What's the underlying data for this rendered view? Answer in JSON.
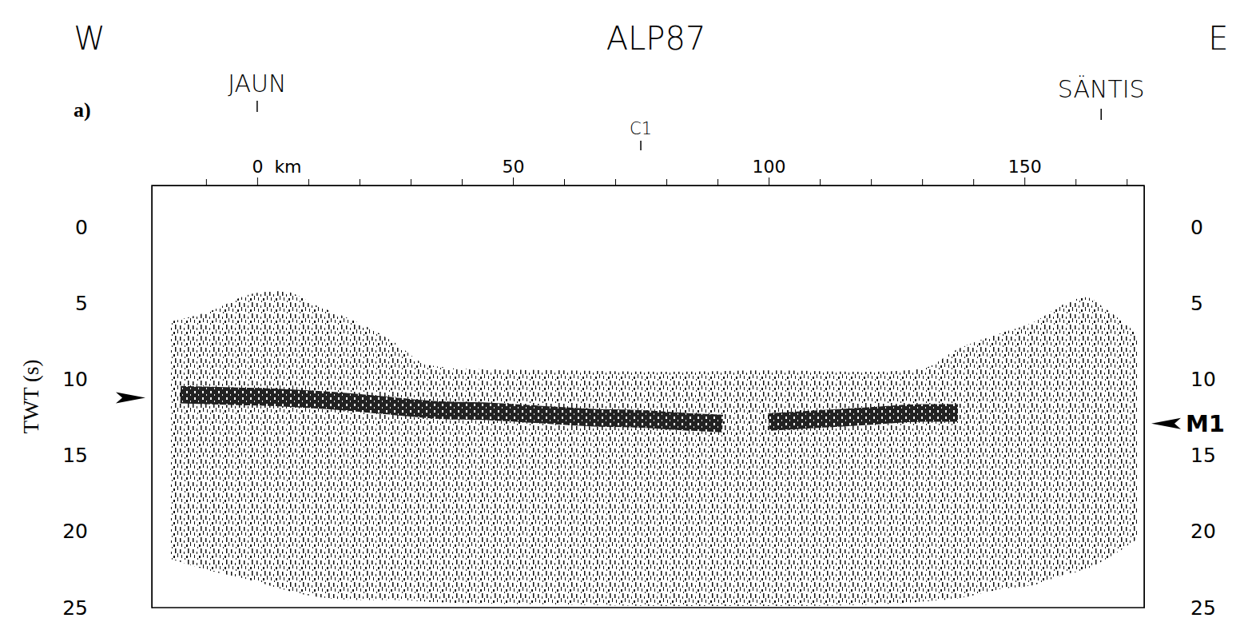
{
  "chart_data": {
    "type": "seismic_section",
    "title": "ALP87",
    "direction_labels": {
      "left": "W",
      "right": "E"
    },
    "panel_label": "a)",
    "ylabel": "TWT (s)",
    "xlabel": "km",
    "xlim": [
      -20.6,
      173.4
    ],
    "xticks": [
      0,
      50,
      100,
      150
    ],
    "xminor_ticks": [
      -10,
      10,
      20,
      30,
      40,
      60,
      70,
      80,
      90,
      110,
      120,
      130,
      140,
      160,
      170
    ],
    "ylim": [
      25,
      -2.75
    ],
    "yticks": [
      0,
      5,
      10,
      15,
      20,
      25
    ],
    "locations": [
      {
        "label": "JAUN",
        "x": 0
      },
      {
        "label": "C1",
        "x": 75
      },
      {
        "label": "SÄNTIS",
        "x": 165
      }
    ],
    "coverage": {
      "x": [
        -17,
        -10,
        0,
        5,
        12,
        20,
        27,
        33,
        40,
        60,
        80,
        100,
        120,
        130,
        137,
        145,
        152,
        158,
        162,
        166,
        172
      ],
      "top": [
        6.2,
        5.6,
        4.3,
        4.2,
        5.2,
        6.3,
        7.6,
        9.0,
        9.3,
        9.4,
        9.5,
        9.4,
        9.5,
        9.3,
        8.0,
        7.0,
        6.2,
        5.0,
        4.6,
        5.4,
        7.0
      ],
      "bottom": [
        21.8,
        22.5,
        23.3,
        23.8,
        24.3,
        24.5,
        24.5,
        24.6,
        24.7,
        24.8,
        24.9,
        24.9,
        24.8,
        24.6,
        24.4,
        23.8,
        23.5,
        22.8,
        22.5,
        21.8,
        20.5
      ]
    },
    "reflector": {
      "name": "M1",
      "x": [
        -15,
        -5,
        5,
        15,
        25,
        35,
        45,
        55,
        65,
        75,
        85,
        91,
        95,
        100,
        110,
        120,
        130,
        137
      ],
      "values": [
        11.0,
        11.1,
        11.2,
        11.4,
        11.7,
        12.0,
        12.1,
        12.3,
        12.5,
        12.6,
        12.8,
        12.9,
        null,
        12.8,
        12.6,
        12.4,
        12.2,
        12.2
      ]
    },
    "markers": [
      {
        "side": "left",
        "value": 11.2
      },
      {
        "side": "right",
        "value": 12.9,
        "label": "M1"
      }
    ]
  }
}
